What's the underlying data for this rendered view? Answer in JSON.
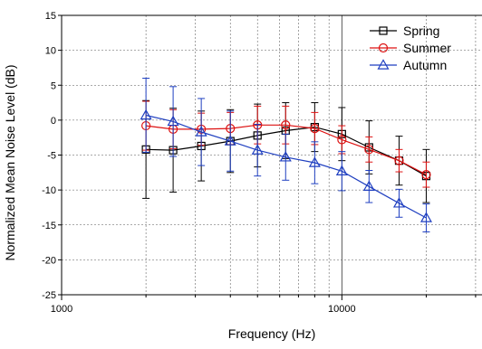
{
  "chart_data": {
    "type": "line",
    "xlabel": "Frequency (Hz)",
    "ylabel": "Normalized Mean Noise Level (dB)",
    "xscale": "log",
    "xlim": [
      1000,
      31622
    ],
    "ylim": [
      -25,
      15
    ],
    "x_ticks": [
      1000,
      10000
    ],
    "x_tick_labels": [
      "1000",
      "10000"
    ],
    "y_ticks": [
      15,
      10,
      5,
      0,
      -5,
      -10,
      -15,
      -20,
      -25
    ],
    "y_tick_labels": [
      "15",
      "10",
      "5",
      "0",
      "-5",
      "-10",
      "-15",
      "-20",
      "-25"
    ],
    "grid": true,
    "legend_position": "top-right",
    "x": [
      2000,
      2500,
      3150,
      4000,
      5000,
      6300,
      8000,
      10000,
      12500,
      16000,
      20000
    ],
    "series": [
      {
        "name": "Spring",
        "color": "#000000",
        "marker": "square",
        "values": [
          -4.2,
          -4.3,
          -3.7,
          -3.0,
          -2.2,
          -1.5,
          -1.0,
          -2.0,
          -3.9,
          -5.8,
          -8.0
        ],
        "error": [
          7.0,
          6.0,
          5.0,
          4.5,
          4.5,
          4.0,
          3.5,
          3.8,
          3.8,
          3.5,
          3.8
        ]
      },
      {
        "name": "Summer",
        "color": "#dd1111",
        "marker": "circle",
        "values": [
          -0.8,
          -1.3,
          -1.3,
          -1.2,
          -0.7,
          -0.7,
          -1.2,
          -2.8,
          -4.2,
          -5.8,
          -7.8
        ],
        "error": [
          3.5,
          2.8,
          2.3,
          2.3,
          2.7,
          2.7,
          2.3,
          2.0,
          1.8,
          1.6,
          1.8
        ]
      },
      {
        "name": "Autumn",
        "color": "#1f3fc0",
        "marker": "triangle",
        "values": [
          0.7,
          -0.2,
          -1.7,
          -3.0,
          -4.3,
          -5.3,
          -6.1,
          -7.3,
          -9.5,
          -11.9,
          -14.0
        ],
        "error": [
          5.3,
          5.0,
          4.8,
          4.3,
          3.7,
          3.3,
          3.0,
          2.8,
          2.3,
          2.0,
          2.0
        ]
      }
    ]
  }
}
